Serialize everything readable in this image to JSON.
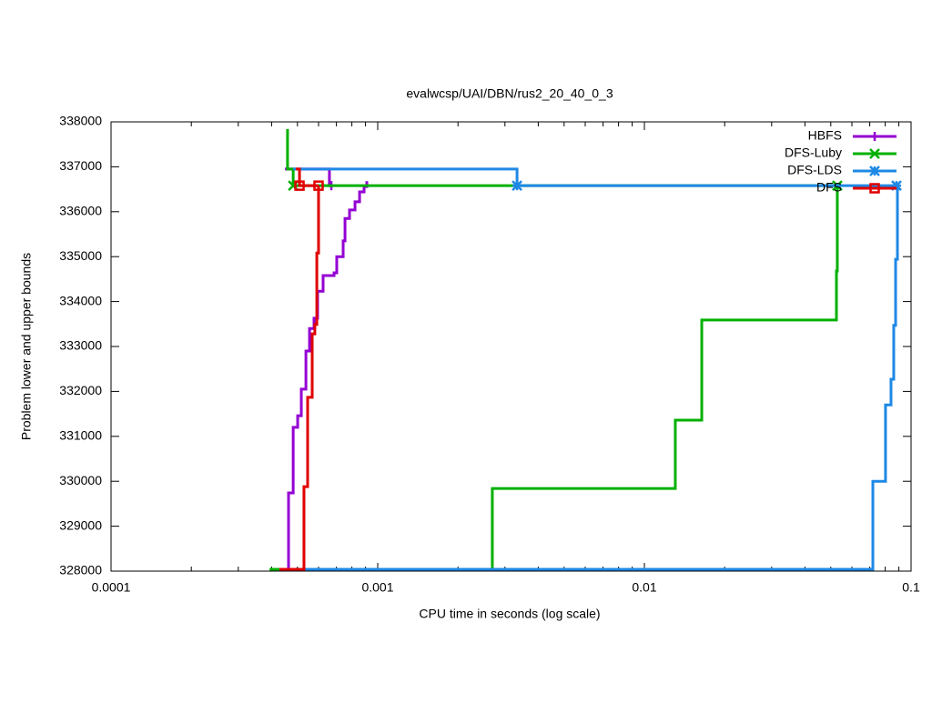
{
  "chart_data": {
    "type": "line",
    "title": "evalwcsp/UAI/DBN/rus2_20_40_0_3",
    "x_label": "CPU time in seconds (log scale)",
    "y_label": "Problem lower and upper bounds",
    "x_log": true,
    "xlim": [
      0.0001,
      0.1
    ],
    "xticks": [
      0.0001,
      0.001,
      0.01,
      0.1
    ],
    "ylim": [
      328000,
      338000
    ],
    "yticks": [
      328000,
      329000,
      330000,
      331000,
      332000,
      333000,
      334000,
      335000,
      336000,
      337000,
      338000
    ],
    "grid": false,
    "legend": "top-right",
    "series": [
      {
        "name": "HBFS",
        "color": "#9400d3",
        "marker": "plus",
        "x": [
          0.000463,
          0.000463,
          0.000482,
          0.000482,
          0.000501,
          0.000501,
          0.000517,
          0.000517,
          0.000538,
          0.000538,
          0.000555,
          0.000555,
          0.000577,
          0.000577,
          0.000595,
          0.000595,
          0.000624,
          0.000624,
          0.000686,
          0.000686,
          0.000702,
          0.000702,
          0.000742,
          0.000742,
          0.000754,
          0.000754,
          0.000784,
          0.000784,
          0.000822,
          0.000822,
          0.000855,
          0.000855,
          0.000889,
          0.000889,
          0.00091,
          0.00091,
          null,
          0.000449,
          0.000659,
          0.000659,
          0.00067
        ],
        "values": [
          328000,
          329740,
          329740,
          331200,
          331200,
          331460,
          331460,
          332050,
          332050,
          332900,
          332900,
          333400,
          333400,
          333630,
          333630,
          334230,
          334230,
          334580,
          334580,
          334640,
          334640,
          335000,
          335000,
          335350,
          335350,
          335850,
          335850,
          336040,
          336040,
          336220,
          336220,
          336440,
          336440,
          336560,
          336560,
          336680,
          null,
          336950,
          336950,
          336580,
          336580
        ],
        "points": {
          "x": [
            0.00067
          ],
          "values": [
            336580
          ]
        }
      },
      {
        "name": "DFS-Luby",
        "color": "#00b000",
        "marker": "cross",
        "x": [
          0.000393,
          0.00269,
          0.00269,
          0.01306,
          0.01306,
          0.01641,
          0.01641,
          0.0525,
          0.0525,
          0.0529,
          0.0529,
          null,
          0.000459,
          0.000459,
          0.000482,
          0.000482,
          0.0529
        ],
        "values": [
          328040,
          328040,
          329840,
          329840,
          331360,
          331360,
          333590,
          333590,
          334680,
          334680,
          336580,
          null,
          337840,
          336950,
          336950,
          336580,
          336580
        ],
        "points": {
          "x": [
            0.000482,
            0.0529
          ],
          "values": [
            336580,
            336580
          ]
        }
      },
      {
        "name": "DFS-LDS",
        "color": "#1e88e5",
        "marker": "star",
        "x": [
          0.000529,
          0.0719,
          0.0719,
          0.0802,
          0.0802,
          0.0841,
          0.0841,
          0.0861,
          0.0861,
          0.0875,
          0.0875,
          0.0889,
          0.0889,
          null,
          0.000482,
          0.00333,
          0.00333,
          0.0882
        ],
        "values": [
          328040,
          328040,
          330000,
          330000,
          331700,
          331700,
          332270,
          332270,
          333470,
          333470,
          334940,
          334940,
          336580,
          null,
          336950,
          336950,
          336580,
          336580
        ],
        "points": {
          "x": [
            0.00333,
            0.0882
          ],
          "values": [
            336580,
            336580
          ]
        }
      },
      {
        "name": "DFS",
        "color": "#e00000",
        "marker": "square",
        "x": [
          0.000428,
          0.000529,
          0.000529,
          0.000546,
          0.000546,
          0.000568,
          0.000568,
          0.000581,
          0.000581,
          0.000591,
          0.000591,
          0.0006,
          0.0006,
          null,
          0.000493,
          0.000509,
          0.000509,
          0.0006
        ],
        "values": [
          328040,
          328040,
          329880,
          329880,
          331870,
          331870,
          333280,
          333280,
          333490,
          333490,
          335080,
          335080,
          336580,
          null,
          336950,
          336950,
          336580,
          336580
        ],
        "points": {
          "x": [
            0.000509,
            0.0006
          ],
          "values": [
            336580,
            336580
          ]
        }
      }
    ]
  }
}
